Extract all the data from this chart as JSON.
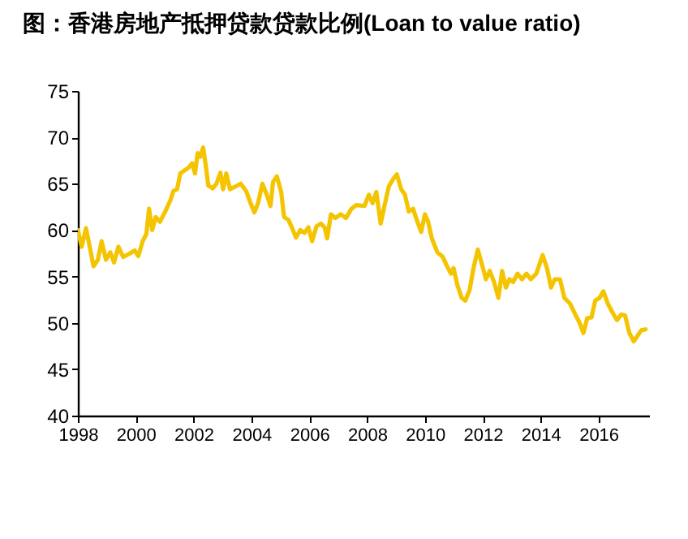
{
  "chart_data": {
    "type": "line",
    "title": "图：香港房地产抵押贷款贷款比例(Loan to value ratio)",
    "xlim": [
      1998,
      2017.75
    ],
    "xticks": [
      1998,
      2000,
      2002,
      2004,
      2006,
      2008,
      2010,
      2012,
      2014,
      2016
    ],
    "ylim": [
      40,
      75
    ],
    "yticks": [
      40,
      45,
      50,
      55,
      60,
      65,
      70,
      75
    ],
    "grid": false,
    "legend": false,
    "marker": "none",
    "line_style": "solid",
    "series": [
      {
        "color": "#f5c400",
        "x": [
          1998.0,
          1998.13,
          1998.28,
          1998.41,
          1998.54,
          1998.69,
          1998.82,
          1998.97,
          1999.12,
          1999.25,
          1999.4,
          1999.57,
          1999.81,
          1999.96,
          2000.09,
          2000.24,
          2000.37,
          2000.46,
          2000.57,
          2000.69,
          2000.84,
          2001.02,
          2001.21,
          2001.3,
          2001.43,
          2001.54,
          2001.67,
          2001.82,
          2001.95,
          2002.05,
          2002.14,
          2002.23,
          2002.33,
          2002.42,
          2002.51,
          2002.66,
          2002.79,
          2002.93,
          2003.02,
          2003.13,
          2003.26,
          2003.45,
          2003.63,
          2003.82,
          2003.97,
          2004.1,
          2004.23,
          2004.38,
          2004.53,
          2004.66,
          2004.75,
          2004.88,
          2005.03,
          2005.13,
          2005.28,
          2005.41,
          2005.54,
          2005.69,
          2005.84,
          2005.97,
          2006.1,
          2006.25,
          2006.4,
          2006.53,
          2006.62,
          2006.75,
          2006.9,
          2007.09,
          2007.27,
          2007.46,
          2007.63,
          2007.91,
          2008.06,
          2008.19,
          2008.32,
          2008.47,
          2008.6,
          2008.75,
          2008.9,
          2009.03,
          2009.18,
          2009.31,
          2009.44,
          2009.59,
          2009.74,
          2009.87,
          2010.0,
          2010.11,
          2010.24,
          2010.43,
          2010.62,
          2010.75,
          2010.9,
          2010.99,
          2011.12,
          2011.27,
          2011.4,
          2011.55,
          2011.68,
          2011.83,
          2011.98,
          2012.11,
          2012.24,
          2012.39,
          2012.54,
          2012.67,
          2012.8,
          2012.92,
          2013.05,
          2013.2,
          2013.36,
          2013.51,
          2013.66,
          2013.85,
          2014.07,
          2014.22,
          2014.36,
          2014.49,
          2014.67,
          2014.82,
          2015.01,
          2015.2,
          2015.35,
          2015.48,
          2015.61,
          2015.76,
          2015.89,
          2016.04,
          2016.17,
          2016.32,
          2016.47,
          2016.64,
          2016.79,
          2016.92,
          2017.07,
          2017.22,
          2017.35,
          2017.48,
          2017.63
        ],
        "values": [
          60.0,
          58.2,
          60.2,
          58.2,
          56.1,
          56.8,
          58.8,
          56.8,
          57.6,
          56.5,
          58.2,
          57.1,
          57.5,
          57.8,
          57.2,
          58.8,
          59.6,
          62.3,
          60.0,
          61.4,
          60.9,
          62.0,
          63.3,
          64.2,
          64.4,
          66.1,
          66.4,
          66.7,
          67.2,
          66.1,
          68.3,
          67.9,
          68.9,
          67.0,
          64.8,
          64.5,
          65.0,
          66.2,
          64.4,
          66.1,
          64.4,
          64.7,
          65.0,
          64.2,
          62.9,
          61.9,
          62.9,
          65.0,
          63.8,
          62.6,
          65.2,
          65.8,
          64.1,
          61.4,
          61.1,
          60.2,
          59.2,
          60.0,
          59.7,
          60.3,
          58.8,
          60.4,
          60.7,
          60.3,
          59.1,
          61.7,
          61.3,
          61.7,
          61.3,
          62.3,
          62.7,
          62.6,
          63.8,
          62.9,
          64.1,
          60.7,
          62.6,
          64.7,
          65.5,
          66.0,
          64.4,
          63.8,
          62.0,
          62.3,
          60.9,
          59.8,
          61.7,
          60.9,
          59.1,
          57.6,
          57.1,
          56.2,
          55.3,
          55.9,
          54.1,
          52.7,
          52.4,
          53.6,
          55.9,
          57.9,
          56.2,
          54.7,
          55.6,
          54.4,
          52.7,
          55.6,
          53.8,
          54.7,
          54.4,
          55.3,
          54.7,
          55.3,
          54.7,
          55.3,
          57.3,
          55.9,
          53.8,
          54.7,
          54.7,
          52.7,
          52.1,
          50.9,
          50.0,
          48.9,
          50.5,
          50.6,
          52.4,
          52.7,
          53.4,
          52.1,
          51.2,
          50.3,
          50.9,
          50.8,
          48.9,
          48.0,
          48.6,
          49.2,
          49.3
        ]
      }
    ]
  }
}
